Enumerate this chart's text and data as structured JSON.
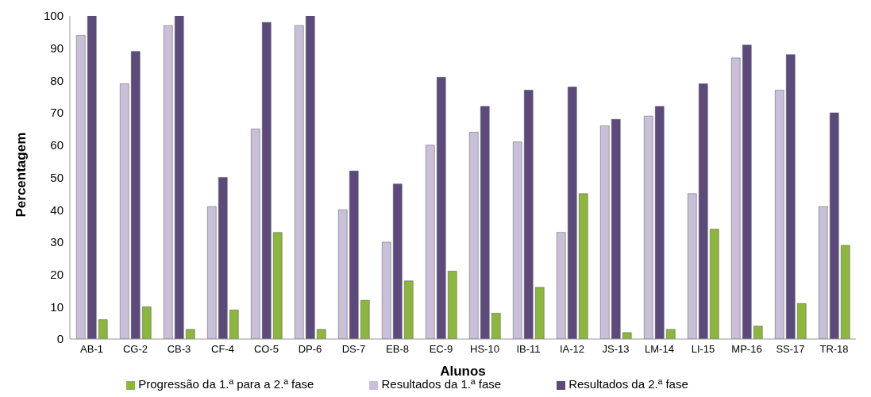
{
  "chart_data": {
    "type": "bar",
    "xlabel": "Alunos",
    "ylabel": "Percentagem",
    "categories": [
      "AB-1",
      "CG-2",
      "CB-3",
      "CF-4",
      "CO-5",
      "DP-6",
      "DS-7",
      "EB-8",
      "EC-9",
      "HS-10",
      "IB-11",
      "IA-12",
      "JS-13",
      "LM-14",
      "LI-15",
      "MP-16",
      "SS-17",
      "TR-18"
    ],
    "series": [
      {
        "name": "Resultados da 1.ª fase",
        "color": "#c9bfd9",
        "values": [
          94,
          79,
          97,
          41,
          65,
          97,
          40,
          30,
          60,
          64,
          61,
          33,
          66,
          69,
          45,
          87,
          77,
          41
        ]
      },
      {
        "name": "Resultados da 2.ª fase",
        "color": "#5c4a7c",
        "values": [
          100,
          89,
          100,
          50,
          98,
          100,
          52,
          48,
          81,
          72,
          77,
          78,
          68,
          72,
          79,
          91,
          88,
          70
        ]
      },
      {
        "name": "Progressão da 1.ª para a 2.ª fase",
        "color": "#8db63c",
        "values": [
          6,
          10,
          3,
          9,
          33,
          3,
          12,
          18,
          21,
          8,
          16,
          45,
          2,
          3,
          34,
          4,
          11,
          29
        ]
      }
    ],
    "ylim": [
      0,
      100
    ],
    "yticks": [
      0,
      10,
      20,
      30,
      40,
      50,
      60,
      70,
      80,
      90,
      100
    ],
    "grid": false,
    "legend": "bottom"
  }
}
